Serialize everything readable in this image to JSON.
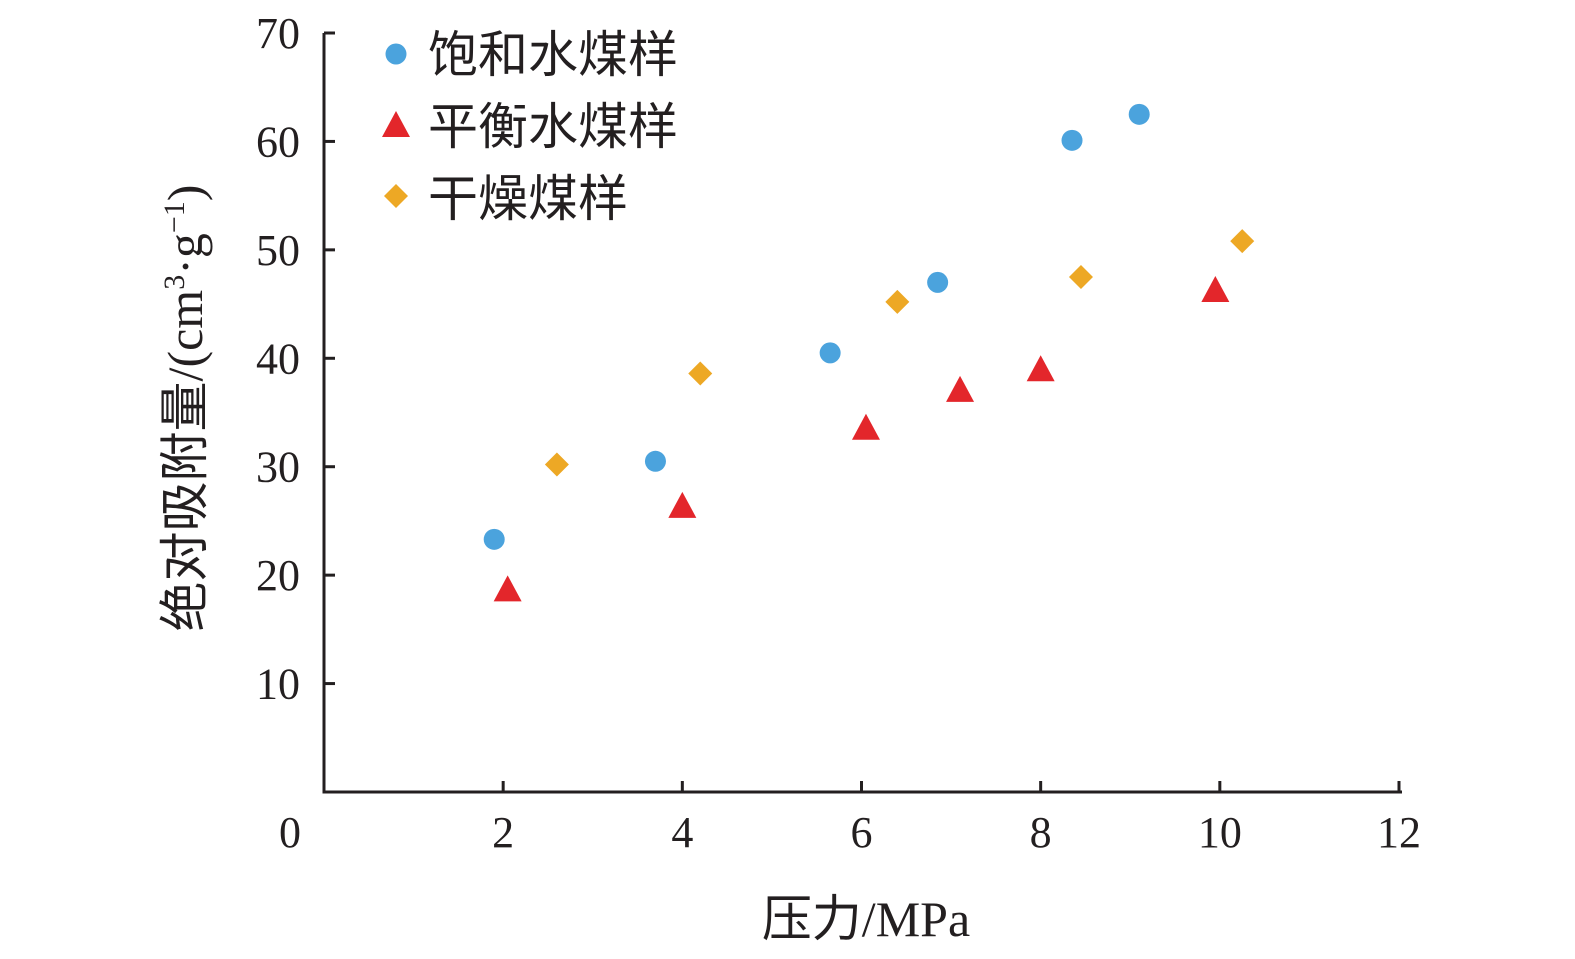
{
  "chart_data": {
    "type": "scatter",
    "xlabel": "压力/MPa",
    "ylabel_main": "绝对吸附量/(cm",
    "ylabel_sup1": "3",
    "ylabel_mid": "·g",
    "ylabel_sup2": "−1",
    "ylabel_end": ")",
    "xlim": [
      0,
      12
    ],
    "ylim": [
      0,
      70
    ],
    "x_ticks": [
      "0",
      "2",
      "4",
      "6",
      "8",
      "10",
      "12"
    ],
    "y_ticks": [
      "10",
      "20",
      "30",
      "40",
      "50",
      "60",
      "70"
    ],
    "grid": false,
    "legend_position": "top-left",
    "series": [
      {
        "name": "饱和水煤样",
        "marker": "circle",
        "color": "#4ba3dd",
        "points": [
          [
            1.9,
            23.3
          ],
          [
            3.7,
            30.5
          ],
          [
            5.65,
            40.5
          ],
          [
            6.85,
            47.0
          ],
          [
            8.35,
            60.1
          ],
          [
            9.1,
            62.5
          ]
        ]
      },
      {
        "name": "平衡水煤样",
        "marker": "triangle",
        "color": "#e3262b",
        "points": [
          [
            2.05,
            18.6
          ],
          [
            4.0,
            26.3
          ],
          [
            6.05,
            33.5
          ],
          [
            7.1,
            37.0
          ],
          [
            8.0,
            38.9
          ],
          [
            9.95,
            46.2
          ]
        ]
      },
      {
        "name": "干燥煤样",
        "marker": "diamond",
        "color": "#eda825",
        "points": [
          [
            2.6,
            30.2
          ],
          [
            4.2,
            38.6
          ],
          [
            6.4,
            45.2
          ],
          [
            8.45,
            47.5
          ],
          [
            10.25,
            50.8
          ]
        ]
      }
    ]
  }
}
